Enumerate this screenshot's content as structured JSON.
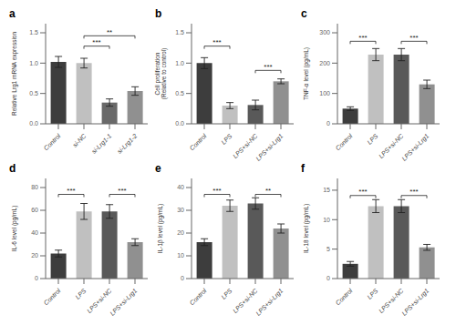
{
  "chart_data": [
    {
      "type": "bar",
      "title": "a",
      "ylabel": "Relative Lrg1 mRNA expression",
      "categories": [
        "Control",
        "si-NC",
        "si-Lrg1-1",
        "si-Lrg1-2"
      ],
      "values": [
        1.02,
        1.0,
        0.35,
        0.54
      ],
      "errors": [
        0.09,
        0.08,
        0.06,
        0.07
      ],
      "colors": [
        "#3d3d3d",
        "#c0c0c0",
        "#696969",
        "#909090"
      ],
      "ylim": [
        0,
        1.65
      ],
      "yticks": [
        {
          "value": 0,
          "label": "0.0"
        },
        0.5,
        {
          "value": 1,
          "label": "1.0"
        },
        1.5
      ],
      "annotations": [
        {
          "x1": "si-NC",
          "x2": "si-Lrg1-1",
          "y": 1.28,
          "label": "***"
        },
        {
          "x1": "si-NC",
          "x2": "si-Lrg1-2",
          "y": 1.45,
          "label": "**"
        }
      ]
    },
    {
      "type": "bar",
      "title": "b",
      "ylabel": "Cell proliferation\n(Relative to control)",
      "categories": [
        "Control",
        "LPS",
        "LPS+si-NC",
        "LPS+si-Lrg1"
      ],
      "values": [
        1.0,
        0.3,
        0.31,
        0.7
      ],
      "errors": [
        0.09,
        0.05,
        0.08,
        0.04
      ],
      "colors": [
        "#3d3d3d",
        "#c0c0c0",
        "#595959",
        "#909090"
      ],
      "ylim": [
        0,
        1.65
      ],
      "yticks": [
        {
          "value": 0,
          "label": "0.0"
        },
        0.5,
        {
          "value": 1,
          "label": "1.0"
        },
        1.5
      ],
      "annotations": [
        {
          "x1": "Control",
          "x2": "LPS",
          "y": 1.28,
          "label": "***"
        },
        {
          "x1": "LPS+si-NC",
          "x2": "LPS+si-Lrg1",
          "y": 0.88,
          "label": "***"
        }
      ]
    },
    {
      "type": "bar",
      "title": "c",
      "ylabel": "TNF-α level (pg/mL)",
      "categories": [
        "Control",
        "LPS",
        "LPS+si-NC",
        "LPS+si-Lrg1"
      ],
      "values": [
        50,
        228,
        228,
        130
      ],
      "errors": [
        6,
        20,
        20,
        14
      ],
      "colors": [
        "#3d3d3d",
        "#c0c0c0",
        "#595959",
        "#909090"
      ],
      "ylim": [
        0,
        330
      ],
      "yticks": [
        0,
        100,
        200,
        300
      ],
      "annotations": [
        {
          "x1": "Control",
          "x2": "LPS",
          "y": 272,
          "label": "***"
        },
        {
          "x1": "LPS+si-NC",
          "x2": "LPS+si-Lrg1",
          "y": 272,
          "label": "***"
        }
      ]
    },
    {
      "type": "bar",
      "title": "d",
      "ylabel": "IL-6 level (pg/mL)",
      "categories": [
        "Control",
        "LPS",
        "LPS+si-NC",
        "LPS+si-Lrg1"
      ],
      "values": [
        22,
        59,
        59,
        32
      ],
      "errors": [
        3,
        7,
        6,
        3
      ],
      "colors": [
        "#3d3d3d",
        "#c0c0c0",
        "#595959",
        "#909090"
      ],
      "ylim": [
        0,
        88
      ],
      "yticks": [
        0,
        20,
        40,
        60,
        80
      ],
      "annotations": [
        {
          "x1": "Control",
          "x2": "LPS",
          "y": 74,
          "label": "***"
        },
        {
          "x1": "LPS+si-NC",
          "x2": "LPS+si-Lrg1",
          "y": 74,
          "label": "***"
        }
      ]
    },
    {
      "type": "bar",
      "title": "e",
      "ylabel": "IL-1β level (pg/mL)",
      "categories": [
        "Control",
        "LPS",
        "LPS+si-NC",
        "LPS+si-Lrg1"
      ],
      "values": [
        16,
        32,
        33,
        22
      ],
      "errors": [
        1.5,
        2.5,
        2.5,
        2.0
      ],
      "colors": [
        "#3d3d3d",
        "#c0c0c0",
        "#595959",
        "#909090"
      ],
      "ylim": [
        0,
        44
      ],
      "yticks": [
        0,
        10,
        20,
        30,
        40
      ],
      "annotations": [
        {
          "x1": "Control",
          "x2": "LPS",
          "y": 37,
          "label": "***"
        },
        {
          "x1": "LPS+si-NC",
          "x2": "LPS+si-Lrg1",
          "y": 37,
          "label": "**"
        }
      ]
    },
    {
      "type": "bar",
      "title": "f",
      "ylabel": "IL-18 level (pg/mL)",
      "categories": [
        "Control",
        "LPS",
        "LPS+si-NC",
        "LPS+si-Lrg1"
      ],
      "values": [
        2.5,
        12.3,
        12.3,
        5.3
      ],
      "errors": [
        0.4,
        1.1,
        1.1,
        0.5
      ],
      "colors": [
        "#3d3d3d",
        "#c0c0c0",
        "#595959",
        "#909090"
      ],
      "ylim": [
        0,
        17
      ],
      "yticks": [
        0,
        5,
        10,
        15
      ],
      "annotations": [
        {
          "x1": "Control",
          "x2": "LPS",
          "y": 14.1,
          "label": "***"
        },
        {
          "x1": "LPS+si-NC",
          "x2": "LPS+si-Lrg1",
          "y": 14.1,
          "label": "***"
        }
      ]
    }
  ]
}
